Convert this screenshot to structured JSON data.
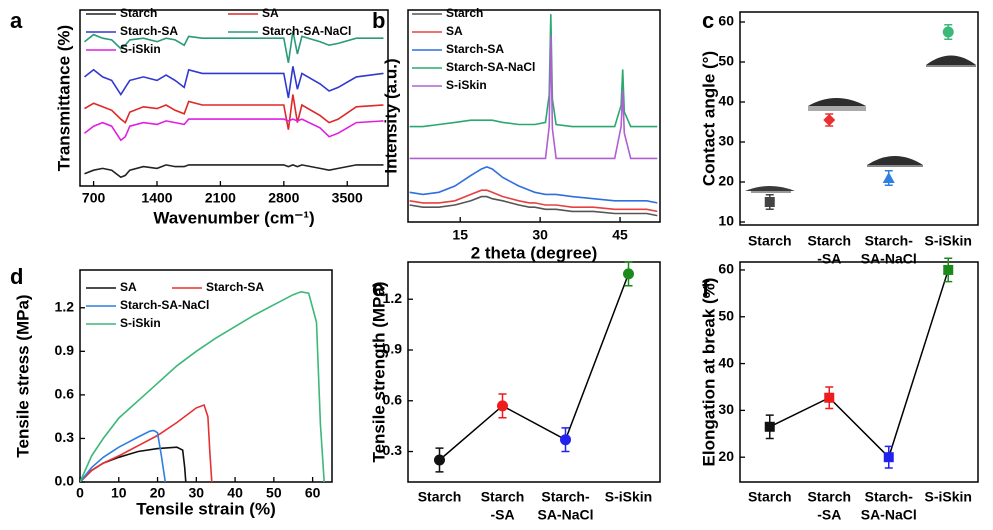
{
  "chart_data": [
    {
      "type": "line",
      "label": "a",
      "xlabel": "Wavenumber (cm⁻¹)",
      "ylabel": "Transmittance (%)",
      "xlim": [
        550,
        3950
      ],
      "xticks": [
        700,
        1400,
        2100,
        2800,
        3500
      ],
      "ylim": [
        0,
        100
      ],
      "x": [
        600,
        700,
        800,
        900,
        1000,
        1050,
        1100,
        1250,
        1400,
        1500,
        1600,
        1700,
        1750,
        1900,
        2200,
        2500,
        2800,
        2850,
        2900,
        2950,
        3000,
        3200,
        3300,
        3400,
        3600,
        3900
      ],
      "series": [
        {
          "name": "Starch",
          "color": "#222222",
          "values": [
            7,
            9,
            10,
            9,
            5,
            6,
            9,
            11,
            10,
            12,
            11,
            11,
            12,
            12,
            12,
            12,
            12,
            11,
            12,
            11,
            12,
            10,
            9,
            10,
            12,
            12
          ]
        },
        {
          "name": "SA",
          "color": "#e02828",
          "values": [
            44,
            47,
            45,
            43,
            38,
            36,
            42,
            45,
            44,
            46,
            43,
            41,
            48,
            46,
            46,
            46,
            46,
            32,
            52,
            36,
            46,
            40,
            36,
            38,
            45,
            46
          ]
        },
        {
          "name": "Starch-SA",
          "color": "#3038d0",
          "values": [
            62,
            66,
            62,
            60,
            52,
            56,
            60,
            62,
            60,
            63,
            60,
            56,
            66,
            64,
            64,
            64,
            64,
            50,
            68,
            55,
            64,
            58,
            54,
            56,
            62,
            64
          ]
        },
        {
          "name": "Starch-SA-NaCl",
          "color": "#2a9a7a",
          "values": [
            82,
            86,
            84,
            83,
            78,
            80,
            83,
            84,
            82,
            84,
            83,
            80,
            85,
            84,
            84,
            84,
            84,
            70,
            88,
            75,
            85,
            82,
            80,
            81,
            84,
            84
          ]
        },
        {
          "name": "S-iSkin",
          "color": "#e020e0",
          "values": [
            30,
            34,
            36,
            34,
            26,
            28,
            34,
            36,
            35,
            37,
            36,
            35,
            38,
            38,
            38,
            38,
            38,
            37,
            38,
            37,
            38,
            33,
            28,
            30,
            36,
            37
          ]
        }
      ]
    },
    {
      "type": "line",
      "label": "b",
      "xlabel": "2 theta (degree)",
      "ylabel": "Intensity (a.u.)",
      "xlim": [
        5.2,
        52.5
      ],
      "xticks": [
        15,
        30,
        45
      ],
      "ylim": [
        0,
        100
      ],
      "x": [
        5.5,
        8,
        11,
        14,
        17,
        19,
        20,
        21,
        23,
        26,
        28,
        29,
        31,
        31.7,
        32,
        32.3,
        33,
        36,
        40,
        44,
        45.2,
        45.5,
        45.8,
        47,
        50,
        52
      ],
      "series": [
        {
          "name": "Starch",
          "color": "#555555",
          "values": [
            8,
            7,
            7,
            8,
            10,
            12,
            12,
            11,
            10,
            8,
            7,
            7,
            6,
            6,
            6,
            6,
            6,
            5,
            5,
            4,
            4,
            4,
            4,
            4,
            4,
            3
          ]
        },
        {
          "name": "SA",
          "color": "#e84040",
          "values": [
            10,
            9,
            9,
            10,
            13,
            15,
            15,
            14,
            12,
            10,
            9,
            9,
            8,
            8,
            8,
            8,
            8,
            7,
            7,
            6,
            6,
            6,
            6,
            6,
            6,
            5
          ]
        },
        {
          "name": "Starch-SA",
          "color": "#2f6fe0",
          "values": [
            14,
            13,
            14,
            17,
            22,
            25,
            26,
            25,
            21,
            17,
            15,
            14,
            13,
            13,
            13,
            13,
            13,
            12,
            11,
            10,
            10,
            10,
            10,
            10,
            10,
            9
          ]
        },
        {
          "name": "Starch-SA-NaCl",
          "color": "#2aa870",
          "values": [
            45,
            45,
            46,
            47,
            48,
            48,
            48,
            48,
            47,
            46,
            46,
            46,
            47,
            60,
            98,
            58,
            46,
            45,
            45,
            45,
            55,
            72,
            52,
            45,
            45,
            45
          ]
        },
        {
          "name": "S-iSkin",
          "color": "#b060d0",
          "values": [
            30,
            30,
            30,
            30,
            30,
            30,
            30,
            30,
            30,
            30,
            30,
            30,
            30,
            45,
            88,
            44,
            30,
            30,
            30,
            30,
            45,
            62,
            42,
            30,
            30,
            30
          ]
        }
      ]
    },
    {
      "type": "scatter",
      "label": "c",
      "ylabel": "Contact angle (°)",
      "categories": [
        [
          "Starch"
        ],
        [
          "Starch",
          "-SA"
        ],
        [
          "Starch-",
          "SA-NaCl"
        ],
        [
          "S-iSkin"
        ]
      ],
      "values": [
        15,
        35.5,
        21,
        57.5
      ],
      "errors": [
        1.8,
        1.5,
        1.8,
        1.8
      ],
      "colors": [
        "#444444",
        "#e83030",
        "#2f7fe0",
        "#3cb878"
      ],
      "markers": [
        "square",
        "diamond",
        "triangle",
        "circle"
      ],
      "ylim": [
        9.25,
        62.5
      ],
      "yticks": [
        10,
        20,
        30,
        40,
        50,
        60
      ]
    },
    {
      "type": "line",
      "label": "d",
      "xlabel": "Tensile strain (%)",
      "ylabel": "Tensile stress (MPa)",
      "xlim": [
        0,
        65
      ],
      "xticks": [
        0,
        10,
        20,
        30,
        40,
        50,
        60
      ],
      "ylim": [
        0,
        1.46
      ],
      "yticks": [
        {
          "value": 0,
          "label": "0.0"
        },
        0.3,
        0.6,
        0.9,
        1.2
      ],
      "series": [
        {
          "name": "SA",
          "color": "#111111",
          "x": [
            0,
            3,
            6,
            10,
            15,
            20,
            25,
            26.5,
            27,
            27.3
          ],
          "values": [
            0,
            0.08,
            0.13,
            0.17,
            0.21,
            0.23,
            0.24,
            0.22,
            0.1,
            0
          ]
        },
        {
          "name": "Starch-SA",
          "color": "#e83030",
          "x": [
            0,
            3,
            6,
            10,
            15,
            20,
            25,
            30,
            32,
            33,
            33.5,
            34
          ],
          "values": [
            0,
            0.08,
            0.13,
            0.18,
            0.25,
            0.32,
            0.41,
            0.51,
            0.53,
            0.45,
            0.2,
            0
          ]
        },
        {
          "name": "Starch-SA-NaCl",
          "color": "#2f7fe0",
          "x": [
            0,
            3,
            6,
            10,
            15,
            18,
            19,
            20,
            21,
            22
          ],
          "values": [
            0,
            0.1,
            0.17,
            0.24,
            0.31,
            0.35,
            0.355,
            0.34,
            0.18,
            0
          ]
        },
        {
          "name": "S-iSkin",
          "color": "#3cb878",
          "x": [
            0,
            3,
            6,
            10,
            15,
            20,
            25,
            30,
            35,
            40,
            45,
            50,
            55,
            57,
            59,
            61,
            62,
            63
          ],
          "values": [
            0,
            0.18,
            0.3,
            0.44,
            0.56,
            0.68,
            0.8,
            0.9,
            0.99,
            1.07,
            1.15,
            1.22,
            1.29,
            1.31,
            1.3,
            1.1,
            0.4,
            0
          ]
        }
      ]
    },
    {
      "type": "scatter",
      "label": "e",
      "ylabel": "Tensile strength (MPa)",
      "connect": true,
      "categories": [
        [
          "Starch"
        ],
        [
          "Starch",
          "-SA"
        ],
        [
          "Starch-",
          "SA-NaCl"
        ],
        [
          "S-iSkin"
        ]
      ],
      "values": [
        0.25,
        0.57,
        0.37,
        1.35
      ],
      "errors": [
        0.07,
        0.07,
        0.07,
        0.07
      ],
      "colors": [
        "#111111",
        "#ee1c1c",
        "#2222ee",
        "#1a8a1a"
      ],
      "markers": [
        "circle",
        "circle",
        "circle",
        "circle"
      ],
      "ylim": [
        0.12,
        1.42
      ],
      "yticks": [
        0.3,
        0.6,
        0.9,
        1.2
      ]
    },
    {
      "type": "scatter",
      "label": "f",
      "ylabel": "Elongation at break (%)",
      "connect": true,
      "categories": [
        [
          "Starch"
        ],
        [
          "Starch",
          "-SA"
        ],
        [
          "Starch-",
          "SA-NaCl"
        ],
        [
          "S-iSkin"
        ]
      ],
      "values": [
        26.5,
        32.7,
        20,
        60
      ],
      "errors": [
        2.5,
        2.3,
        2.3,
        2.5
      ],
      "colors": [
        "#111111",
        "#ee1c1c",
        "#2222ee",
        "#1a8a1a"
      ],
      "markers": [
        "square",
        "square",
        "square",
        "square"
      ],
      "ylim": [
        14.7,
        61.7
      ],
      "yticks": [
        20,
        30,
        40,
        50,
        60
      ]
    }
  ]
}
